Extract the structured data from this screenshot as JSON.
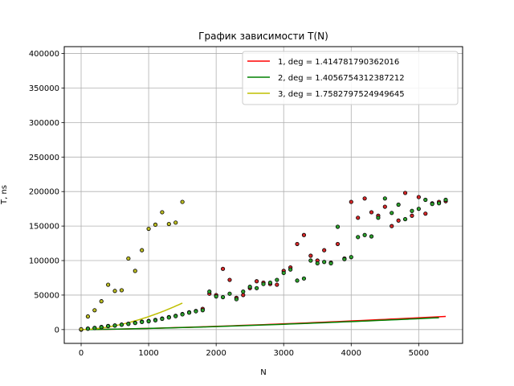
{
  "chart_data": {
    "type": "scatter",
    "title": "График зависимости T(N)",
    "xlabel": "N",
    "ylabel": "T, ns",
    "xlim": [
      -250,
      5650
    ],
    "ylim": [
      -20000,
      410000
    ],
    "x_ticks": [
      0,
      1000,
      2000,
      3000,
      4000,
      5000
    ],
    "y_ticks": [
      0,
      50000,
      100000,
      150000,
      200000,
      250000,
      300000,
      350000,
      400000
    ],
    "grid": true,
    "legend_position": "top-right",
    "scatter_series": [
      {
        "color": "#d62728",
        "points": [
          [
            0,
            0
          ],
          [
            100,
            1500
          ],
          [
            200,
            2500
          ],
          [
            300,
            3800
          ],
          [
            400,
            5200
          ],
          [
            500,
            6000
          ],
          [
            600,
            7200
          ],
          [
            700,
            8500
          ],
          [
            800,
            9800
          ],
          [
            900,
            11500
          ],
          [
            1000,
            12500
          ],
          [
            1100,
            14000
          ],
          [
            1200,
            16000
          ],
          [
            1300,
            18000
          ],
          [
            1400,
            20000
          ],
          [
            1500,
            22500
          ],
          [
            1600,
            25000
          ],
          [
            1700,
            27000
          ],
          [
            1800,
            30000
          ],
          [
            1900,
            52000
          ],
          [
            2000,
            50000
          ],
          [
            2100,
            88000
          ],
          [
            2200,
            72000
          ],
          [
            2300,
            46000
          ],
          [
            2400,
            50000
          ],
          [
            2500,
            60000
          ],
          [
            2600,
            70000
          ],
          [
            2700,
            68000
          ],
          [
            2800,
            66000
          ],
          [
            2900,
            65000
          ],
          [
            3000,
            85000
          ],
          [
            3100,
            90000
          ],
          [
            3200,
            124000
          ],
          [
            3300,
            137000
          ],
          [
            3400,
            107000
          ],
          [
            3500,
            100000
          ],
          [
            3600,
            115000
          ],
          [
            3700,
            97000
          ],
          [
            3800,
            124000
          ],
          [
            3900,
            103000
          ],
          [
            4000,
            185000
          ],
          [
            4100,
            162000
          ],
          [
            4200,
            190000
          ],
          [
            4300,
            170000
          ],
          [
            4400,
            165000
          ],
          [
            4500,
            178000
          ],
          [
            4600,
            150000
          ],
          [
            4700,
            158000
          ],
          [
            4800,
            198000
          ],
          [
            4900,
            165000
          ],
          [
            5000,
            192000
          ],
          [
            5100,
            168000
          ],
          [
            5200,
            183000
          ],
          [
            5300,
            185000
          ],
          [
            5400,
            186000
          ]
        ]
      },
      {
        "color": "#2ca02c",
        "points": [
          [
            0,
            0
          ],
          [
            100,
            1200
          ],
          [
            200,
            2200
          ],
          [
            300,
            3500
          ],
          [
            400,
            5000
          ],
          [
            500,
            5800
          ],
          [
            600,
            7000
          ],
          [
            700,
            8200
          ],
          [
            800,
            9500
          ],
          [
            900,
            11000
          ],
          [
            1000,
            12000
          ],
          [
            1100,
            13500
          ],
          [
            1200,
            15500
          ],
          [
            1300,
            17500
          ],
          [
            1400,
            19500
          ],
          [
            1500,
            22000
          ],
          [
            1600,
            24500
          ],
          [
            1700,
            26500
          ],
          [
            1800,
            28000
          ],
          [
            1900,
            55000
          ],
          [
            2000,
            48000
          ],
          [
            2100,
            47000
          ],
          [
            2200,
            52000
          ],
          [
            2300,
            44000
          ],
          [
            2400,
            55000
          ],
          [
            2500,
            62000
          ],
          [
            2600,
            60000
          ],
          [
            2700,
            66000
          ],
          [
            2800,
            68000
          ],
          [
            2900,
            72000
          ],
          [
            3000,
            82000
          ],
          [
            3100,
            87000
          ],
          [
            3200,
            71000
          ],
          [
            3300,
            74000
          ],
          [
            3400,
            100000
          ],
          [
            3500,
            96000
          ],
          [
            3600,
            98000
          ],
          [
            3700,
            96000
          ],
          [
            3800,
            149000
          ],
          [
            3900,
            102000
          ],
          [
            4000,
            105000
          ],
          [
            4100,
            134000
          ],
          [
            4200,
            137000
          ],
          [
            4300,
            135000
          ],
          [
            4400,
            162000
          ],
          [
            4500,
            190000
          ],
          [
            4600,
            169000
          ],
          [
            4700,
            181000
          ],
          [
            4800,
            160000
          ],
          [
            4900,
            172000
          ],
          [
            5000,
            175000
          ],
          [
            5100,
            188000
          ],
          [
            5200,
            182000
          ],
          [
            5300,
            183000
          ],
          [
            5400,
            188000
          ]
        ]
      },
      {
        "color": "#bcbd22",
        "points": [
          [
            0,
            500
          ],
          [
            100,
            19000
          ],
          [
            200,
            28000
          ],
          [
            300,
            41000
          ],
          [
            400,
            65000
          ],
          [
            500,
            56000
          ],
          [
            600,
            57000
          ],
          [
            700,
            103000
          ],
          [
            800,
            85000
          ],
          [
            900,
            115000
          ],
          [
            1000,
            146000
          ],
          [
            1100,
            152000
          ],
          [
            1200,
            170000
          ],
          [
            1300,
            153000
          ],
          [
            1400,
            155000
          ],
          [
            1500,
            185000
          ]
        ]
      }
    ],
    "series": [
      {
        "name": "1, deg = 1.414781790362016",
        "color": "#ff0000",
        "type": "line",
        "coef": 0.1,
        "deg": 1.414781790362016,
        "x_range": [
          0,
          5400
        ]
      },
      {
        "name": "2, deg = 1.4056754312387212",
        "color": "#008000",
        "type": "line",
        "coef": 0.1,
        "deg": 1.4056754312387212,
        "x_range": [
          0,
          5300
        ]
      },
      {
        "name": "3, deg = 1.7582797524949645",
        "color": "#bfbf00",
        "type": "line",
        "coef": 0.1,
        "deg": 1.7582797524949645,
        "x_range": [
          0,
          1500
        ]
      }
    ]
  }
}
